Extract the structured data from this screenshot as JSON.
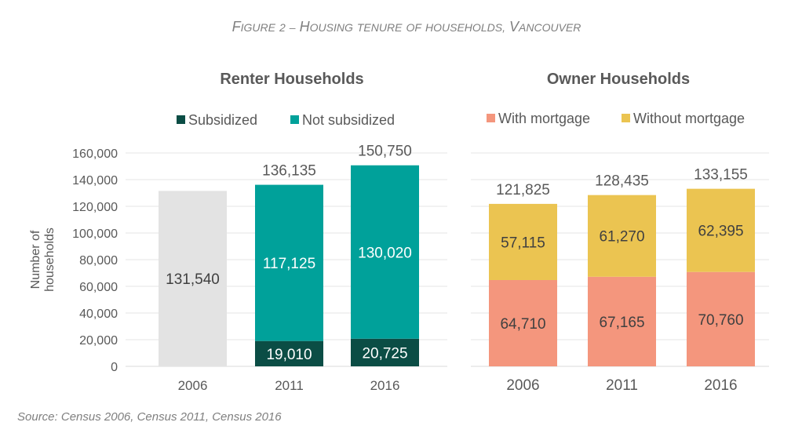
{
  "figure_title": "Figure 2 – Housing tenure of households, Vancouver",
  "source": "Source: Census 2006, Census 2011, Census 2016",
  "chart_data": [
    {
      "type": "bar",
      "stacked": true,
      "title": "Renter Households",
      "ylabel": "Number of households",
      "ylim": [
        0,
        160000
      ],
      "yticks": [
        "0",
        "20,000",
        "40,000",
        "60,000",
        "80,000",
        "100,000",
        "120,000",
        "140,000",
        "160,000"
      ],
      "grid": true,
      "legend_position": "top",
      "categories": [
        "2006",
        "2011",
        "2016"
      ],
      "series": [
        {
          "name": "Subsidized",
          "color": "#0b4d45",
          "values": [
            0,
            19010,
            20725
          ],
          "labels": [
            "",
            "19,010",
            "20,725"
          ]
        },
        {
          "name": "Not subsidized",
          "color": "#00a19a",
          "values": [
            131540,
            117125,
            130020
          ],
          "labels": [
            "131,540",
            "117,125",
            "130,020"
          ]
        }
      ],
      "unsplit_color": "#e3e3e3",
      "totals": [
        "",
        "136,135",
        "150,750"
      ]
    },
    {
      "type": "bar",
      "stacked": true,
      "title": "Owner Households",
      "ylim": [
        0,
        160000
      ],
      "grid": true,
      "legend_position": "top",
      "categories": [
        "2006",
        "2011",
        "2016"
      ],
      "series": [
        {
          "name": "With mortgage",
          "color": "#f4967d",
          "values": [
            64710,
            67165,
            70760
          ],
          "labels": [
            "64,710",
            "67,165",
            "70,760"
          ]
        },
        {
          "name": "Without mortgage",
          "color": "#ebc451",
          "values": [
            57115,
            61270,
            62395
          ],
          "labels": [
            "57,115",
            "61,270",
            "62,395"
          ]
        }
      ],
      "totals": [
        "121,825",
        "128,435",
        "133,155"
      ]
    }
  ]
}
